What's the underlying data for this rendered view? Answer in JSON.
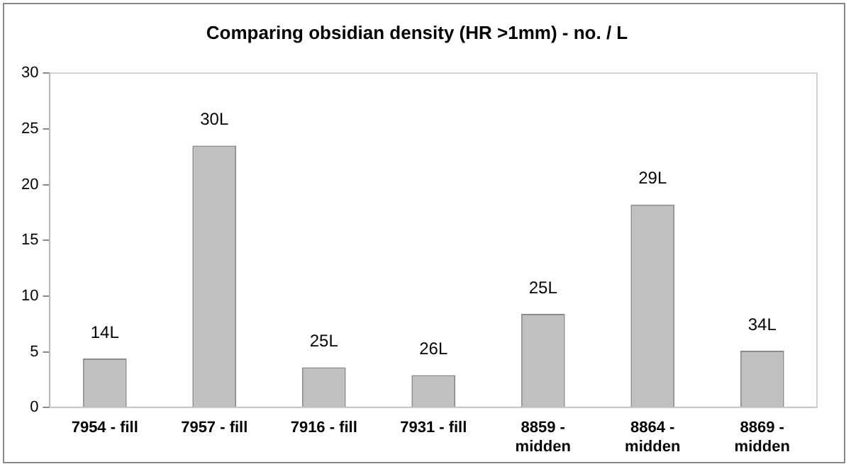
{
  "chart_data": {
    "type": "bar",
    "title": "Comparing obsidian density (HR >1mm) - no. / L",
    "categories": [
      "7954 - fill",
      "7957 - fill",
      "7916 - fill",
      "7931 - fill",
      "8859 - midden",
      "8864 - midden",
      "8869 - midden"
    ],
    "values": [
      4.4,
      23.5,
      3.6,
      2.9,
      8.4,
      18.2,
      5.1
    ],
    "color": "#c0c0c0",
    "ylim": [
      0,
      30
    ],
    "yticks": [
      0,
      5,
      10,
      15,
      20,
      25,
      30
    ],
    "grid": false,
    "legend": false,
    "annotations": [
      {
        "text": "14L",
        "x": "7954 - fill",
        "y": 4.4
      },
      {
        "text": "30L",
        "x": "7957 - fill",
        "y": 23.5
      },
      {
        "text": "25L",
        "x": "7916 - fill",
        "y": 3.6
      },
      {
        "text": "26L",
        "x": "7931 - fill",
        "y": 2.9
      },
      {
        "text": "25L",
        "x": "8859 - midden",
        "y": 8.4
      },
      {
        "text": "29L",
        "x": "8864 - midden",
        "y": 18.2
      },
      {
        "text": "34L",
        "x": "8869 - midden",
        "y": 5.1
      }
    ]
  }
}
